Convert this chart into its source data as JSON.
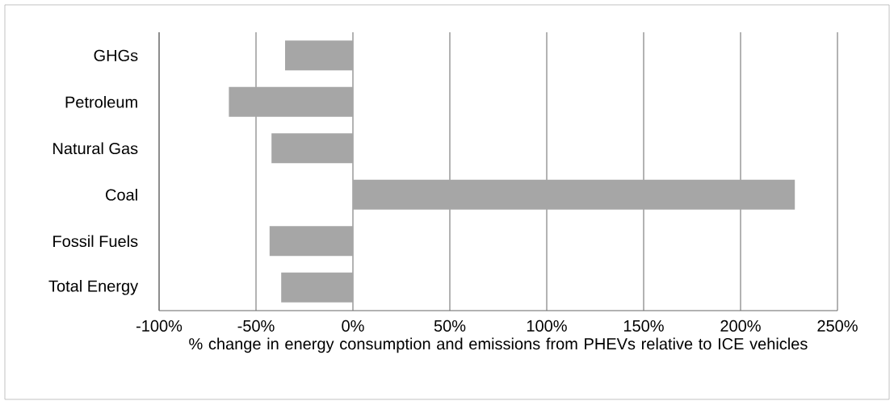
{
  "chart_data": {
    "type": "bar",
    "orientation": "horizontal",
    "categories": [
      "GHGs",
      "Petroleum",
      "Natural Gas",
      "Coal",
      "Fossil Fuels",
      "Total Energy"
    ],
    "values": [
      -35,
      -64,
      -42,
      228,
      -43,
      -37
    ],
    "color": "#a6a6a6",
    "xlabel": "% change in energy consumption and emissions from PHEVs relative to ICE vehicles",
    "xlim": [
      -100,
      250
    ],
    "xticks": [
      {
        "value": -100,
        "label": "-100%"
      },
      {
        "value": -50,
        "label": "-50%"
      },
      {
        "value": 0,
        "label": "0%"
      },
      {
        "value": 50,
        "label": "50%"
      },
      {
        "value": 100,
        "label": "100%"
      },
      {
        "value": 150,
        "label": "150%"
      },
      {
        "value": 200,
        "label": "200%"
      },
      {
        "value": 250,
        "label": "250%"
      }
    ],
    "grid": "x"
  }
}
